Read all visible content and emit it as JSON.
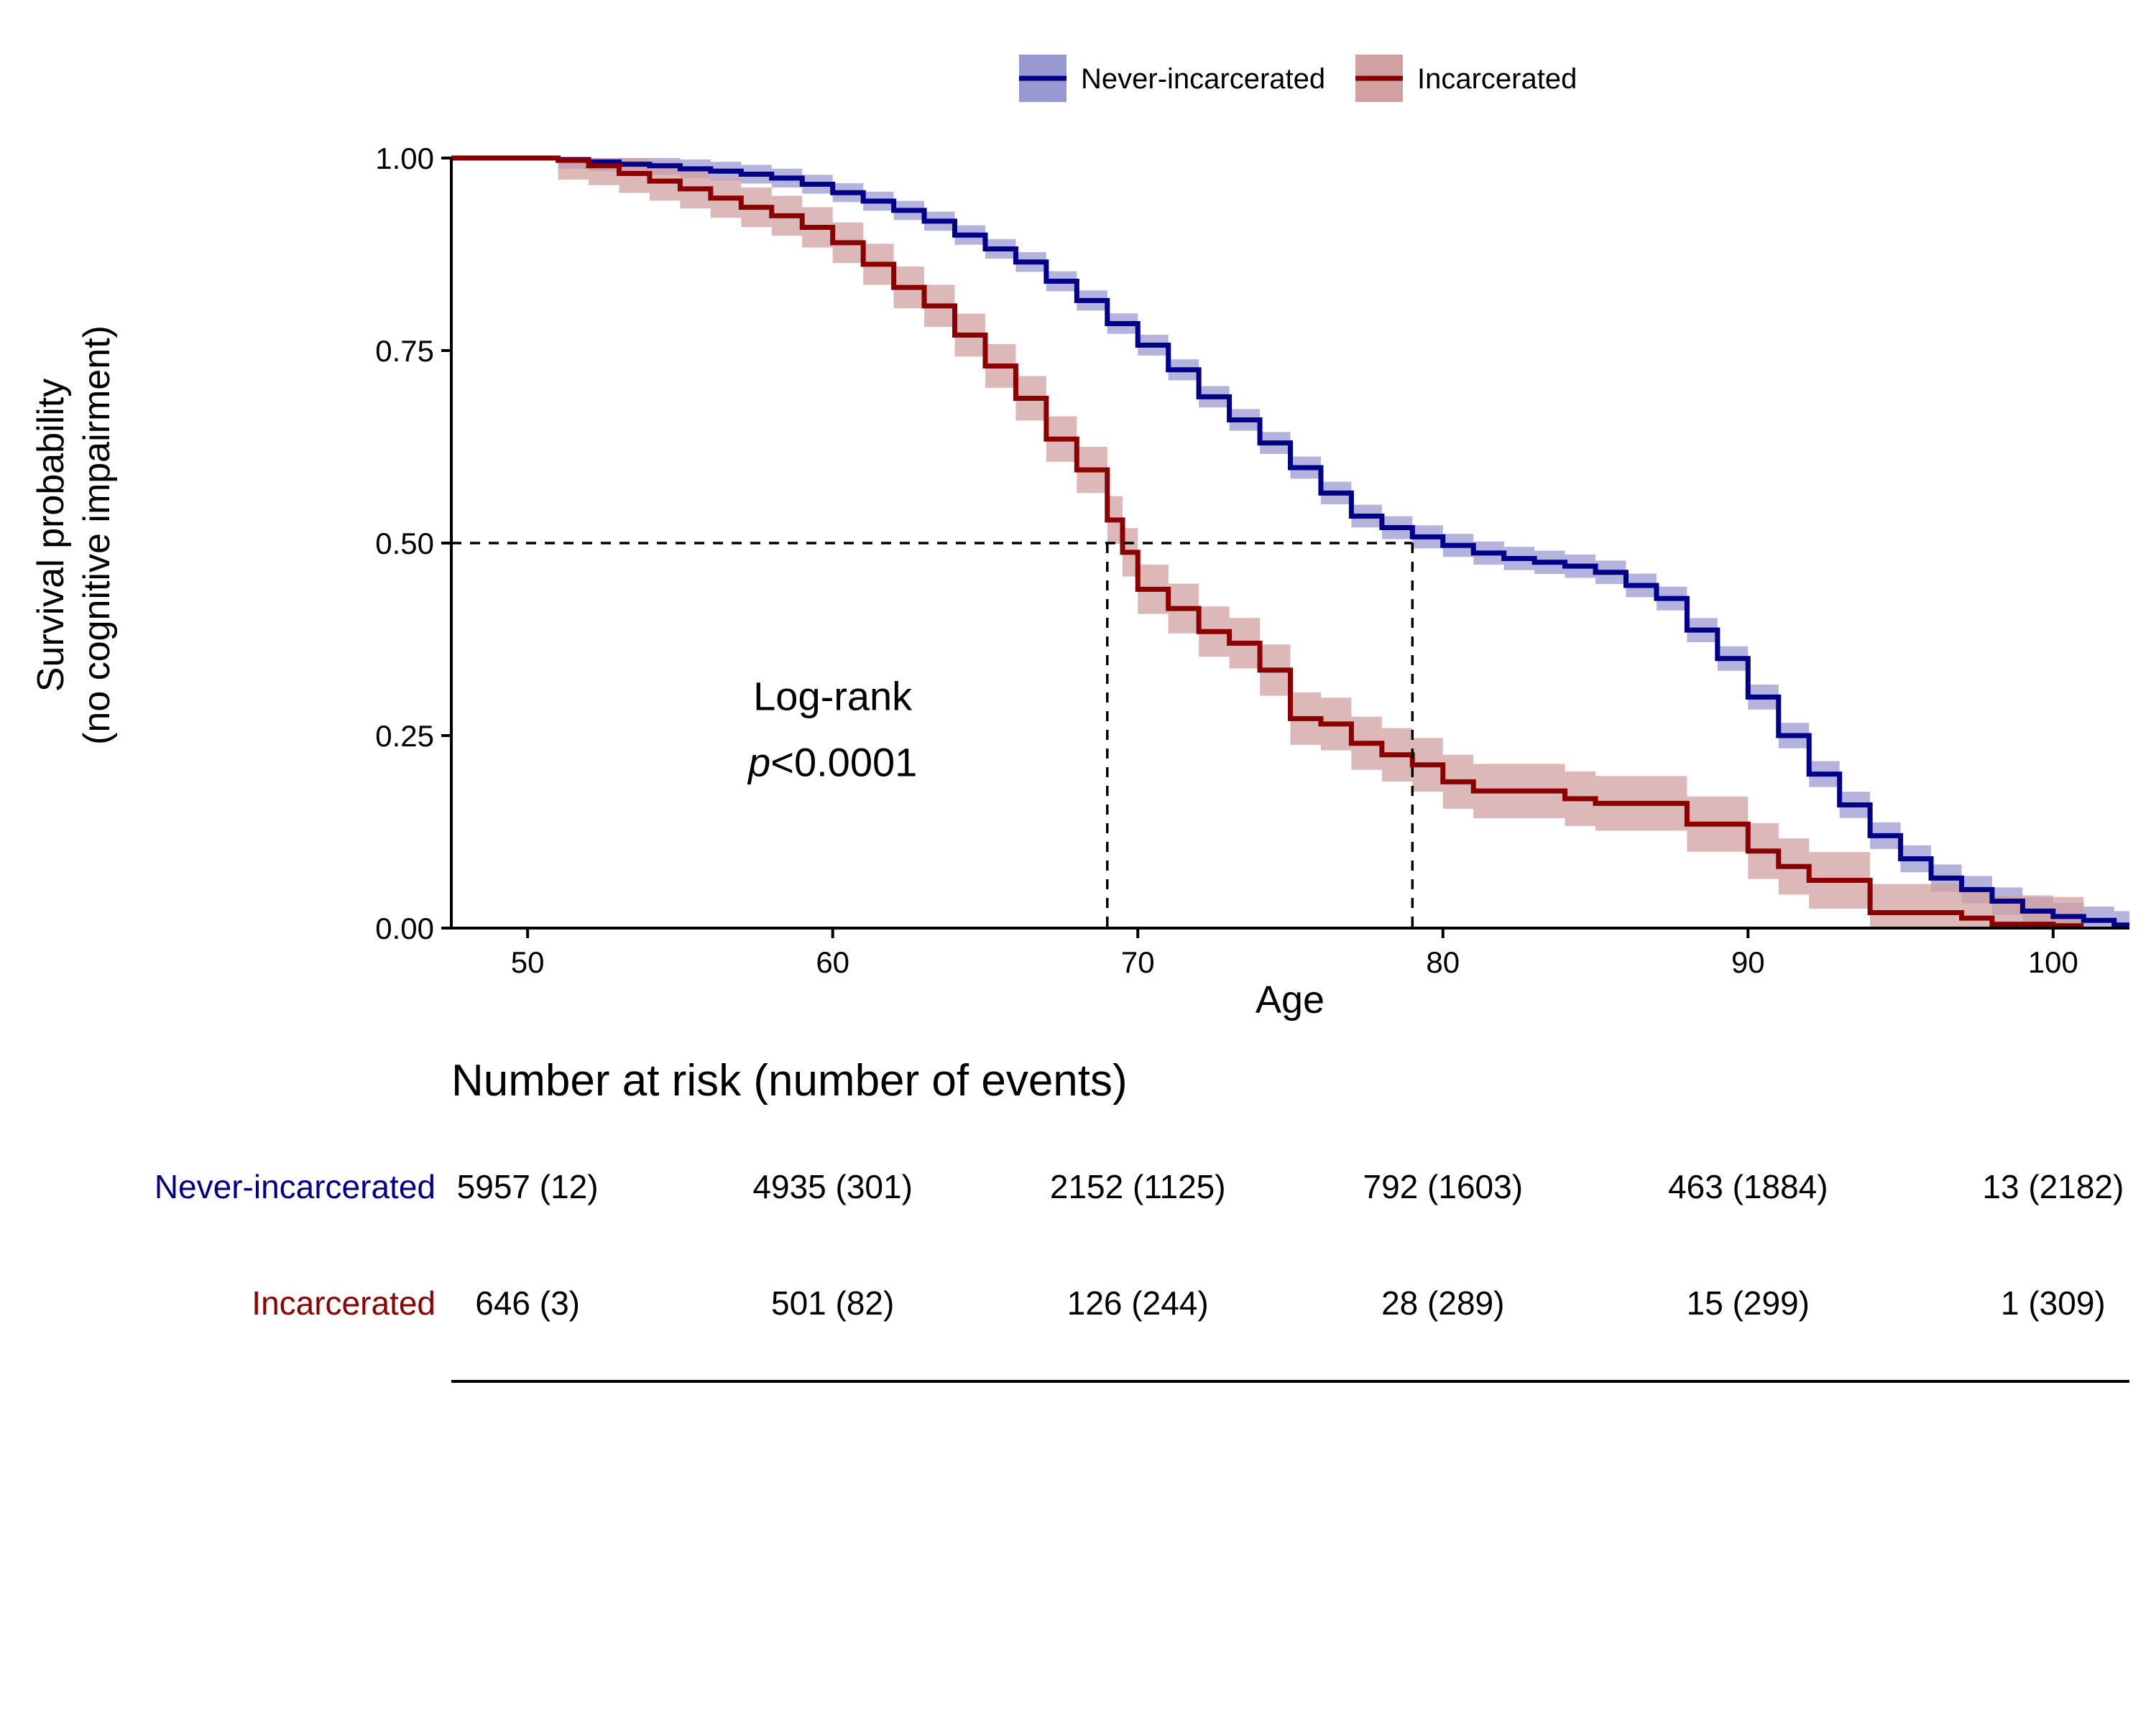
{
  "chart_data": {
    "type": "line",
    "subtype": "kaplan-meier step survival curves with confidence bands",
    "xlabel": "Age",
    "ylabel_line1": "Survival probability",
    "ylabel_line2": "(no cognitive impairment)",
    "xlim": [
      47.5,
      102.5
    ],
    "ylim": [
      0,
      1
    ],
    "x_ticks": [
      50,
      60,
      70,
      80,
      90,
      100
    ],
    "y_ticks": [
      0,
      0.25,
      0.5,
      0.75,
      1.0
    ],
    "y_tick_labels": [
      "0.00",
      "0.25",
      "0.50",
      "0.75",
      "1.00"
    ],
    "legend_position": "top",
    "grid": false,
    "annotation": {
      "line1": "Log-rank",
      "p_italic": "p",
      "p_rest": "<0.0001",
      "x": 60,
      "y": 0.255
    },
    "median_lines": {
      "y": 0.5,
      "x_values": [
        69,
        79
      ]
    },
    "series": [
      {
        "name": "Never-incarcerated",
        "color": "#00008B",
        "band_color": "#9999D1",
        "ci_halfwidth": 0.012,
        "points": [
          [
            47.5,
            1.0
          ],
          [
            51,
            0.998
          ],
          [
            52,
            0.995
          ],
          [
            53,
            0.992
          ],
          [
            54,
            0.99
          ],
          [
            55,
            0.986
          ],
          [
            56,
            0.983
          ],
          [
            57,
            0.979
          ],
          [
            58,
            0.974
          ],
          [
            59,
            0.966
          ],
          [
            60,
            0.955
          ],
          [
            61,
            0.944
          ],
          [
            62,
            0.932
          ],
          [
            63,
            0.918
          ],
          [
            64,
            0.9
          ],
          [
            65,
            0.882
          ],
          [
            66,
            0.865
          ],
          [
            67,
            0.84
          ],
          [
            68,
            0.815
          ],
          [
            69,
            0.785
          ],
          [
            70,
            0.757
          ],
          [
            71,
            0.725
          ],
          [
            72,
            0.69
          ],
          [
            73,
            0.66
          ],
          [
            74,
            0.63
          ],
          [
            75,
            0.598
          ],
          [
            76,
            0.565
          ],
          [
            77,
            0.535
          ],
          [
            78,
            0.52
          ],
          [
            79,
            0.508
          ],
          [
            80,
            0.497
          ],
          [
            81,
            0.487
          ],
          [
            82,
            0.48
          ],
          [
            83,
            0.475
          ],
          [
            84,
            0.47
          ],
          [
            85,
            0.462
          ],
          [
            86,
            0.445
          ],
          [
            87,
            0.428
          ],
          [
            88,
            0.387
          ],
          [
            89,
            0.35
          ],
          [
            90,
            0.3
          ],
          [
            91,
            0.25
          ],
          [
            92,
            0.2
          ],
          [
            93,
            0.16
          ],
          [
            94,
            0.12
          ],
          [
            95,
            0.09
          ],
          [
            96,
            0.065
          ],
          [
            97,
            0.05
          ],
          [
            98,
            0.035
          ],
          [
            99,
            0.022
          ],
          [
            100,
            0.015
          ],
          [
            101,
            0.01
          ],
          [
            102,
            0.004
          ]
        ],
        "end_x": 102.5
      },
      {
        "name": "Incarcerated",
        "color": "#8B0000",
        "band_color": "#D1A0A0",
        "ci_halfwidth": 0.025,
        "points": [
          [
            47.5,
            1.0
          ],
          [
            51,
            0.997
          ],
          [
            52,
            0.99
          ],
          [
            53,
            0.98
          ],
          [
            54,
            0.97
          ],
          [
            55,
            0.96
          ],
          [
            56,
            0.948
          ],
          [
            57,
            0.936
          ],
          [
            58,
            0.925
          ],
          [
            59,
            0.91
          ],
          [
            60,
            0.89
          ],
          [
            61,
            0.862
          ],
          [
            62,
            0.832
          ],
          [
            63,
            0.808
          ],
          [
            64,
            0.77
          ],
          [
            65,
            0.73
          ],
          [
            66,
            0.688
          ],
          [
            67,
            0.635
          ],
          [
            68,
            0.595
          ],
          [
            69,
            0.53
          ],
          [
            69.5,
            0.488
          ],
          [
            70,
            0.44
          ],
          [
            71,
            0.415
          ],
          [
            72,
            0.385
          ],
          [
            73,
            0.37
          ],
          [
            74,
            0.335
          ],
          [
            75,
            0.272
          ],
          [
            76,
            0.265
          ],
          [
            77,
            0.24
          ],
          [
            78,
            0.225
          ],
          [
            79,
            0.212
          ],
          [
            80,
            0.19
          ],
          [
            81,
            0.178
          ],
          [
            84,
            0.168
          ],
          [
            85,
            0.162
          ],
          [
            88,
            0.135
          ],
          [
            90,
            0.1
          ],
          [
            91,
            0.08
          ],
          [
            92,
            0.062
          ],
          [
            94,
            0.02
          ],
          [
            97,
            0.013
          ],
          [
            98,
            0.005
          ],
          [
            100,
            0.003
          ]
        ],
        "end_x": 101
      }
    ],
    "risk_table": {
      "title": "Number at risk (number of events)",
      "times": [
        50,
        60,
        70,
        80,
        90,
        100
      ],
      "rows": [
        {
          "label": "Never-incarcerated",
          "color": "#00008B",
          "values": [
            "5957 (12)",
            "4935 (301)",
            "2152 (1125)",
            "792 (1603)",
            "463 (1884)",
            "13 (2182)"
          ]
        },
        {
          "label": "Incarcerated",
          "color": "#8B0000",
          "values": [
            "646 (3)",
            "501 (82)",
            "126 (244)",
            "28 (289)",
            "15 (299)",
            "1 (309)"
          ]
        }
      ]
    }
  }
}
